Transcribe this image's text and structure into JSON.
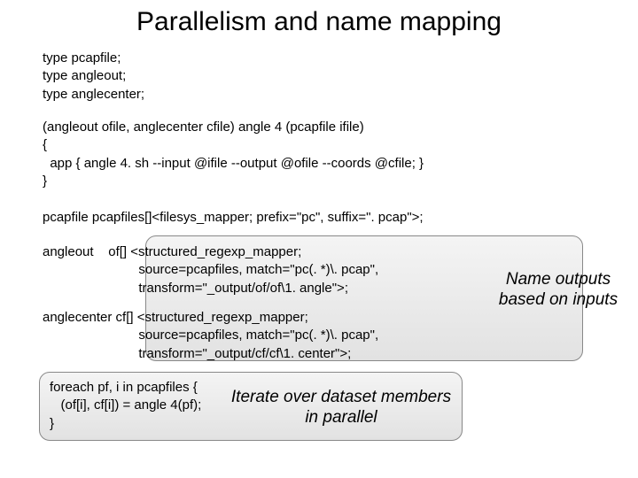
{
  "title": "Parallelism and name mapping",
  "code": {
    "types": "type pcapfile;\ntype angleout;\ntype anglecenter;",
    "fn": "(angleout ofile, anglecenter cfile) angle 4 (pcapfile ifile)\n{\n  app { angle 4. sh --input @ifile --output @ofile --coords @cfile; }\n}",
    "map": "pcapfile pcapfiles[]<filesys_mapper; prefix=\"pc\", suffix=\". pcap\">;",
    "of": "angleout    of[] <structured_regexp_mapper;\n                          source=pcapfiles, match=\"pc(. *)\\. pcap\",\n                          transform=\"_output/of/of\\1. angle\">;",
    "cf": "anglecenter cf[] <structured_regexp_mapper;\n                          source=pcapfiles, match=\"pc(. *)\\. pcap\",\n                          transform=\"_output/cf/cf\\1. center\">;",
    "foreach": "foreach pf, i in pcapfiles {\n   (of[i], cf[i]) = angle 4(pf);\n}"
  },
  "labels": {
    "name_outputs": "Name outputs based on inputs",
    "iterate": "Iterate over dataset members in parallel"
  },
  "style": {
    "background": "#ffffff",
    "text_color": "#000000",
    "title_fontsize": 30,
    "code_fontsize": 15,
    "label_fontsize": 19,
    "callout_border": "#888888",
    "callout_fill_top": "#f4f4f4",
    "callout_fill_bottom": "#e2e2e2",
    "callout_radius": 12
  }
}
